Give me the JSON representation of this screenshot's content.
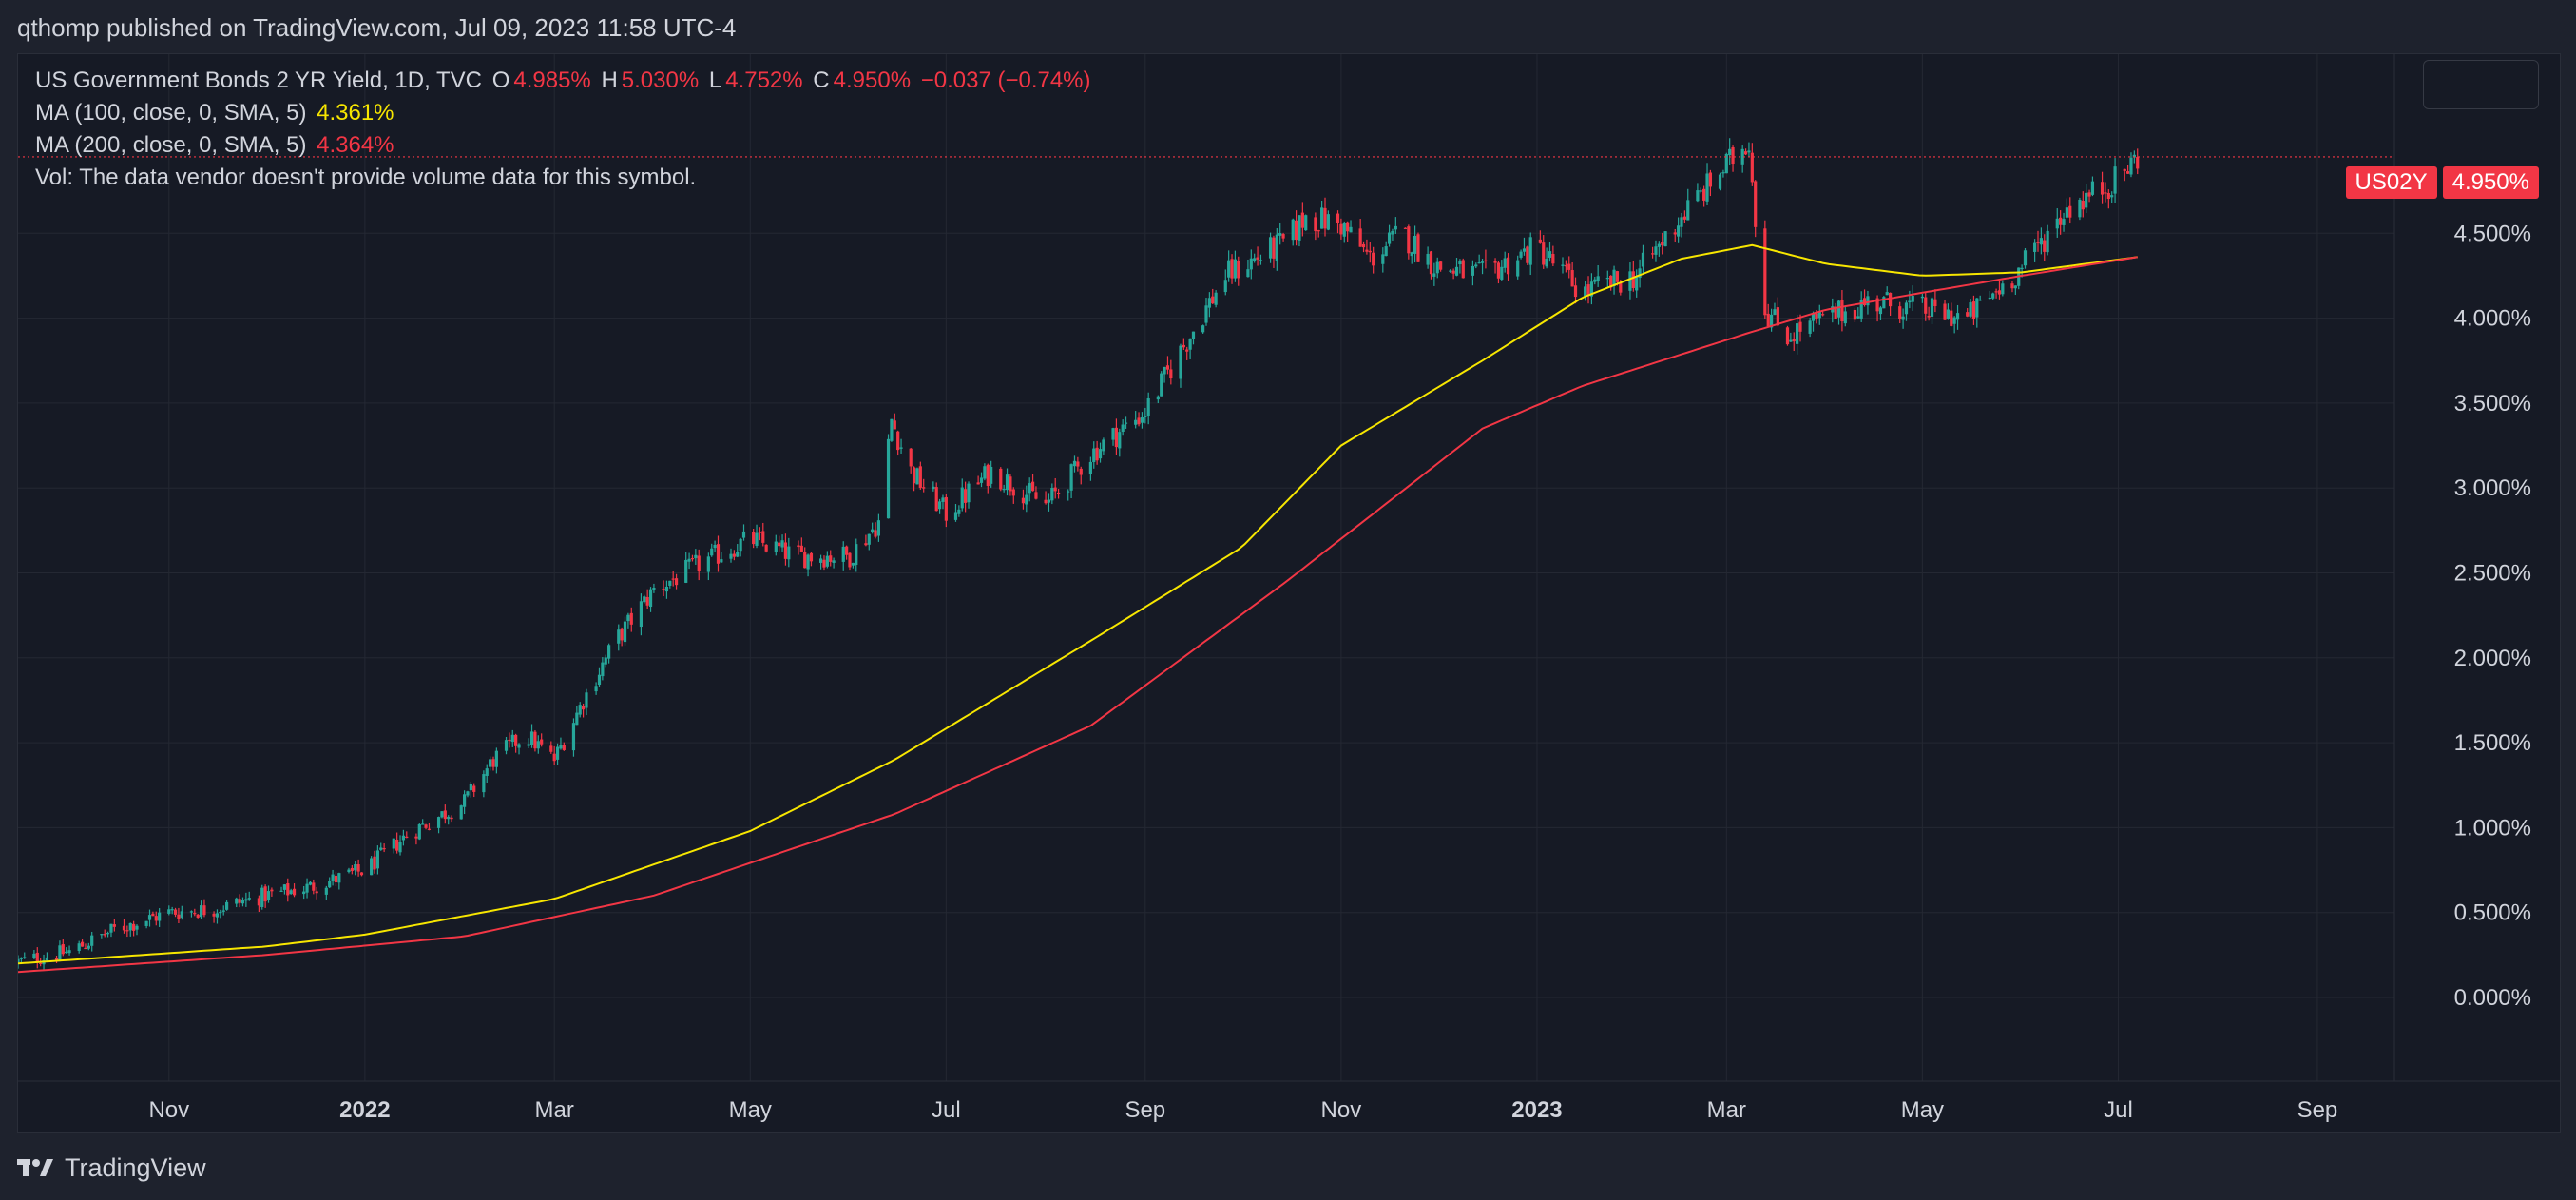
{
  "header": {
    "publish_text": "qthomp published on TradingView.com, Jul 09, 2023 11:58 UTC-4"
  },
  "legend": {
    "symbol": "US Government Bonds 2 YR Yield, 1D, TVC",
    "o_label": "O",
    "o_value": "4.985%",
    "h_label": "H",
    "h_value": "5.030%",
    "l_label": "L",
    "l_value": "4.752%",
    "c_label": "C",
    "c_value": "4.950%",
    "change": "−0.037 (−0.74%)",
    "ma100_label": "MA (100, close, 0, SMA, 5)",
    "ma100_value": "4.361%",
    "ma200_label": "MA (200, close, 0, SMA, 5)",
    "ma200_value": "4.364%",
    "vol_text": "Vol: The data vendor doesn't provide volume data for this symbol."
  },
  "price_tags": {
    "symbol": "US02Y",
    "last": "4.950%"
  },
  "footer": {
    "brand": "TradingView"
  },
  "colors": {
    "up": "#26a69a",
    "down": "#f23645",
    "ma100": "#f7e600",
    "ma200": "#f23645",
    "background": "#161a25",
    "grid": "#242833",
    "text": "#d1d4dc"
  },
  "chart_data": {
    "type": "candlestick",
    "title": "US Government Bonds 2 YR Yield, 1D, TVC",
    "x_ticks": [
      "Nov",
      "2022",
      "Mar",
      "May",
      "Jul",
      "Sep",
      "Nov",
      "2023",
      "Mar",
      "May",
      "Jul",
      "Sep"
    ],
    "y_ticks": [
      "0.000%",
      "0.500%",
      "1.000%",
      "1.500%",
      "2.000%",
      "2.500%",
      "3.000%",
      "3.500%",
      "4.000%",
      "4.500%"
    ],
    "ylim": [
      -0.35,
      5.3
    ],
    "xlim": [
      "2021-09-15",
      "2023-09-25"
    ],
    "last_close": 4.95,
    "close_series": {
      "dates": [
        "2021-09-15",
        "2021-10-01",
        "2021-10-15",
        "2021-11-01",
        "2021-11-15",
        "2021-12-01",
        "2021-12-15",
        "2022-01-01",
        "2022-01-15",
        "2022-02-01",
        "2022-02-10",
        "2022-02-20",
        "2022-03-01",
        "2022-03-10",
        "2022-03-20",
        "2022-04-01",
        "2022-04-15",
        "2022-05-01",
        "2022-05-15",
        "2022-06-01",
        "2022-06-10",
        "2022-06-14",
        "2022-06-20",
        "2022-07-01",
        "2022-07-15",
        "2022-08-01",
        "2022-08-15",
        "2022-09-01",
        "2022-09-15",
        "2022-09-26",
        "2022-10-15",
        "2022-10-21",
        "2022-11-01",
        "2022-11-10",
        "2022-11-20",
        "2022-12-01",
        "2022-12-15",
        "2023-01-01",
        "2023-01-15",
        "2023-02-01",
        "2023-02-15",
        "2023-03-01",
        "2023-03-08",
        "2023-03-10",
        "2023-03-13",
        "2023-03-20",
        "2023-04-01",
        "2023-04-15",
        "2023-05-01",
        "2023-05-15",
        "2023-06-01",
        "2023-06-15",
        "2023-07-01",
        "2023-07-07"
      ],
      "values": [
        0.21,
        0.27,
        0.4,
        0.5,
        0.52,
        0.6,
        0.65,
        0.75,
        0.97,
        1.15,
        1.4,
        1.55,
        1.4,
        1.75,
        2.1,
        2.4,
        2.55,
        2.7,
        2.6,
        2.6,
        2.8,
        3.4,
        3.1,
        2.85,
        3.1,
        2.9,
        3.2,
        3.45,
        3.9,
        4.25,
        4.45,
        4.6,
        4.55,
        4.35,
        4.5,
        4.3,
        4.25,
        4.42,
        4.15,
        4.25,
        4.6,
        4.9,
        5.05,
        4.6,
        4.05,
        3.9,
        4.0,
        4.1,
        4.05,
        4.0,
        4.3,
        4.65,
        4.82,
        4.95
      ]
    },
    "series": [
      {
        "name": "MA (100, close, 0, SMA, 5)",
        "last_value": 4.361,
        "x": [
          "2021-09-15",
          "2021-12-01",
          "2022-01-01",
          "2022-03-01",
          "2022-05-01",
          "2022-06-15",
          "2022-08-15",
          "2022-10-01",
          "2022-11-01",
          "2022-12-15",
          "2023-01-15",
          "2023-02-15",
          "2023-03-09",
          "2023-04-01",
          "2023-05-01",
          "2023-06-01",
          "2023-07-07"
        ],
        "values": [
          0.2,
          0.3,
          0.37,
          0.58,
          0.98,
          1.4,
          2.1,
          2.65,
          3.25,
          3.75,
          4.12,
          4.35,
          4.43,
          4.32,
          4.25,
          4.27,
          4.36
        ]
      },
      {
        "name": "MA (200, close, 0, SMA, 5)",
        "last_value": 4.364,
        "x": [
          "2021-09-15",
          "2021-12-01",
          "2022-02-01",
          "2022-04-01",
          "2022-06-15",
          "2022-08-15",
          "2022-10-15",
          "2022-12-15",
          "2023-01-15",
          "2023-03-09",
          "2023-04-01",
          "2023-05-01",
          "2023-06-01",
          "2023-07-07"
        ],
        "values": [
          0.15,
          0.25,
          0.36,
          0.6,
          1.08,
          1.6,
          2.45,
          3.35,
          3.6,
          3.92,
          4.05,
          4.15,
          4.25,
          4.36
        ]
      }
    ]
  }
}
